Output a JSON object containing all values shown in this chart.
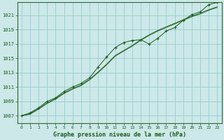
{
  "title": "Graphe pression niveau de la mer (hPa)",
  "bg_color": "#cce8e8",
  "grid_color": "#99cccc",
  "line_color": "#1a5c1a",
  "xlim": [
    -0.5,
    23.5
  ],
  "ylim": [
    1006.0,
    1022.8
  ],
  "yticks": [
    1007,
    1009,
    1011,
    1013,
    1015,
    1017,
    1019,
    1021
  ],
  "xticks": [
    0,
    1,
    2,
    3,
    4,
    5,
    6,
    7,
    8,
    9,
    10,
    11,
    12,
    13,
    14,
    15,
    16,
    17,
    18,
    19,
    20,
    21,
    22,
    23
  ],
  "series1_x": [
    0,
    1,
    2,
    3,
    4,
    5,
    6,
    7,
    8,
    9,
    10,
    11,
    12,
    13,
    14,
    15,
    16,
    17,
    18,
    19,
    20,
    21,
    22,
    23
  ],
  "series1_y": [
    1007.0,
    1007.4,
    1008.1,
    1009.0,
    1009.5,
    1010.4,
    1011.0,
    1011.5,
    1012.3,
    1013.8,
    1015.2,
    1016.5,
    1017.2,
    1017.5,
    1017.6,
    1017.0,
    1017.8,
    1018.8,
    1019.3,
    1020.3,
    1021.1,
    1021.5,
    1022.5,
    1022.8
  ],
  "series2_y": [
    1007.0,
    1007.2,
    1007.9,
    1008.7,
    1009.3,
    1010.1,
    1010.7,
    1011.2,
    1012.0,
    1013.0,
    1014.1,
    1015.3,
    1016.0,
    1016.7,
    1017.5,
    1018.2,
    1018.8,
    1019.3,
    1019.8,
    1020.3,
    1020.8,
    1021.2,
    1021.7,
    1022.1
  ],
  "series3_y": [
    1007.0,
    1007.3,
    1008.0,
    1008.8,
    1009.4,
    1010.2,
    1010.8,
    1011.3,
    1012.1,
    1013.1,
    1014.2,
    1015.4,
    1016.1,
    1016.8,
    1017.6,
    1018.3,
    1018.9,
    1019.4,
    1019.9,
    1020.4,
    1020.9,
    1021.3,
    1021.8,
    1022.2
  ],
  "tick_fontsize": 5,
  "xlabel_fontsize": 6,
  "spine_color": "#336633"
}
